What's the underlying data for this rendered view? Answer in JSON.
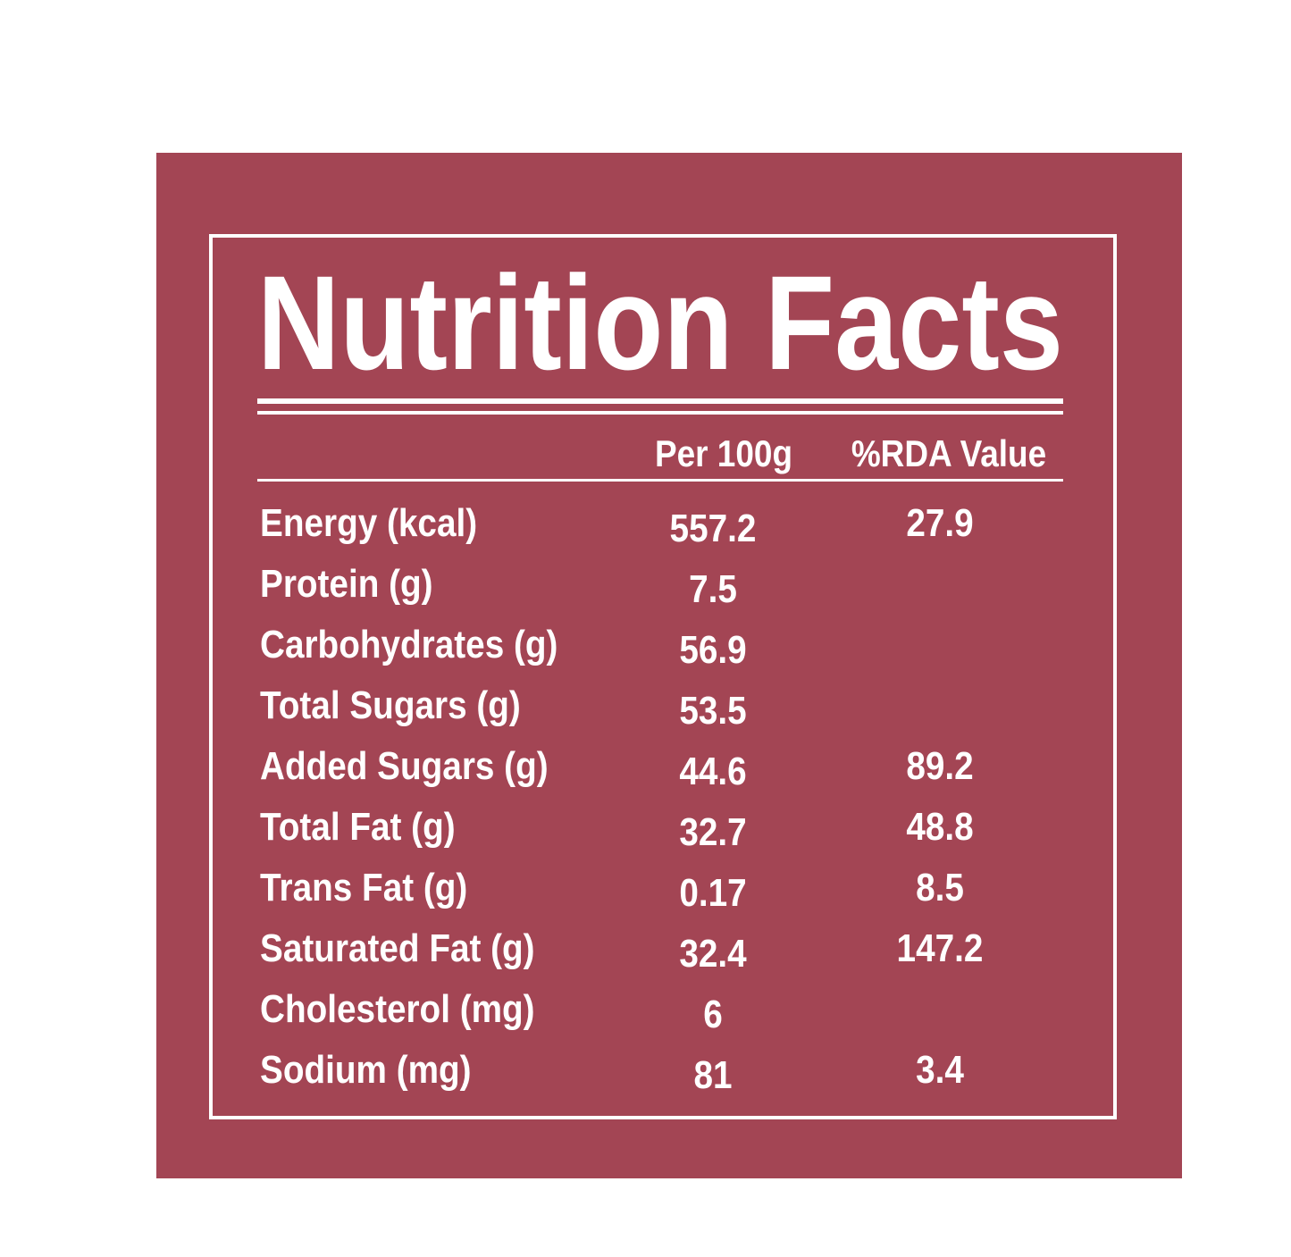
{
  "title": "Nutrition Facts",
  "table": {
    "columns": [
      "Per 100g",
      "%RDA Value"
    ],
    "rows": [
      {
        "label": "Energy (kcal)",
        "per_100g": "557.2",
        "rda": "27.9"
      },
      {
        "label": "Protein (g)",
        "per_100g": "7.5"
      },
      {
        "label": "Carbohydrates (g)",
        "per_100g": "56.9"
      },
      {
        "label": "Total Sugars (g)",
        "per_100g": "53.5"
      },
      {
        "label": "Added Sugars (g)",
        "per_100g": "44.6",
        "rda": "89.2"
      },
      {
        "label": "Total Fat (g)",
        "per_100g": "32.7",
        "rda": "48.8"
      },
      {
        "label": "Trans Fat (g)",
        "per_100g": "0.17",
        "rda": "8.5"
      },
      {
        "label": "Saturated Fat (g)",
        "per_100g": "32.4",
        "rda": "147.2"
      },
      {
        "label": "Cholesterol (mg)",
        "per_100g": "6"
      },
      {
        "label": "Sodium (mg)",
        "per_100g": "81",
        "rda": "3.4"
      }
    ]
  }
}
